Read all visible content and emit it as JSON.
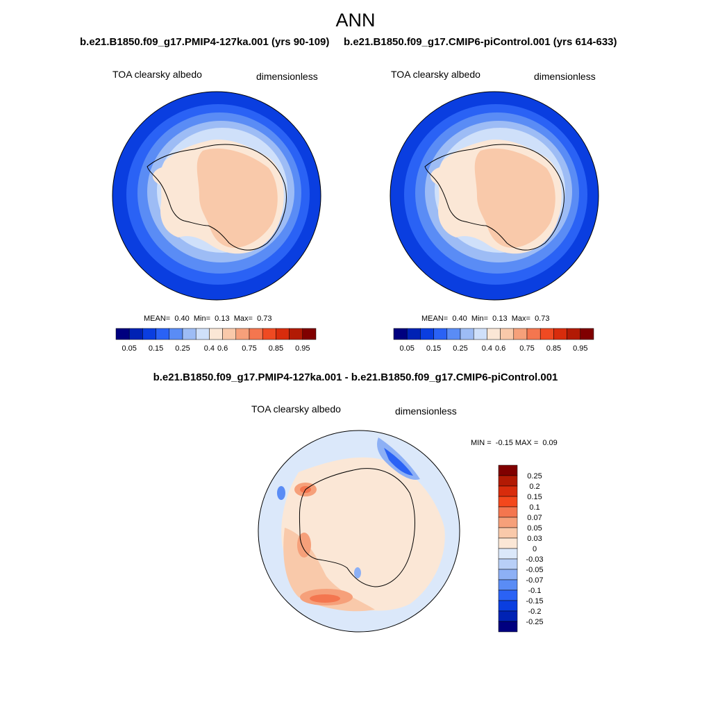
{
  "figure": {
    "title": "ANN",
    "panel_a": {
      "case": "b.e21.B1850.f09_g17.PMIP4-127ka.001 (yrs 90-109)",
      "variable": "TOA clearsky albedo",
      "units": "dimensionless",
      "stats": {
        "mean_label": "MEAN=",
        "mean": "0.40",
        "min_label": "Min=",
        "min": "0.13",
        "max_label": "Max=",
        "max": "0.73"
      }
    },
    "panel_b": {
      "case": "b.e21.B1850.f09_g17.CMIP6-piControl.001 (yrs 614-633)",
      "variable": "TOA clearsky albedo",
      "units": "dimensionless",
      "stats": {
        "mean_label": "MEAN=",
        "mean": "0.40",
        "min_label": "Min=",
        "min": "0.13",
        "max_label": "Max=",
        "max": "0.73"
      }
    },
    "panel_c": {
      "title": "b.e21.B1850.f09_g17.PMIP4-127ka.001 - b.e21.B1850.f09_g17.CMIP6-piControl.001",
      "variable": "TOA clearsky albedo",
      "units": "dimensionless",
      "stats": {
        "min_label": "MIN =",
        "min": "-0.15",
        "max_label": "MAX =",
        "max": "0.09"
      }
    },
    "colorbar_abs": {
      "ticks": [
        "0.05",
        "0.15",
        "0.25",
        "0.4",
        "0.6",
        "0.75",
        "0.85",
        "0.95"
      ],
      "colors": [
        "#00007f",
        "#0022b4",
        "#0a3ee0",
        "#2a62f5",
        "#5a8cf5",
        "#9dbcf5",
        "#cfe0fa",
        "#fbe7d6",
        "#f9c9aa",
        "#f6a07a",
        "#f4764f",
        "#ef4a22",
        "#d82c0c",
        "#b21a04",
        "#800000"
      ]
    },
    "colorbar_diff": {
      "labels": [
        "0.25",
        "0.2",
        "0.15",
        "0.1",
        "0.07",
        "0.05",
        "0.03",
        "0",
        "-0.03",
        "-0.05",
        "-0.07",
        "-0.1",
        "-0.15",
        "-0.2",
        "-0.25"
      ],
      "colors": [
        "#800000",
        "#b21a04",
        "#d82c0c",
        "#f4481c",
        "#f4764f",
        "#f6a07a",
        "#f9c9aa",
        "#fbe7d6",
        "#dbe8fa",
        "#b8cff7",
        "#8db0f5",
        "#5a8cf5",
        "#2a62f5",
        "#0a3ee0",
        "#0022b4",
        "#00007f"
      ]
    },
    "chart_data": {
      "type": "heatmap",
      "projection": "South Polar Stereographic",
      "season": "ANN",
      "panels": [
        {
          "name": "PMIP4-127ka",
          "variable": "TOA clearsky albedo",
          "mean": 0.4,
          "min": 0.13,
          "max": 0.73,
          "levels": [
            0.05,
            0.1,
            0.15,
            0.2,
            0.25,
            0.3,
            0.4,
            0.5,
            0.6,
            0.7,
            0.75,
            0.8,
            0.85,
            0.9,
            0.95
          ]
        },
        {
          "name": "CMIP6-piControl",
          "variable": "TOA clearsky albedo",
          "mean": 0.4,
          "min": 0.13,
          "max": 0.73,
          "levels": [
            0.05,
            0.1,
            0.15,
            0.2,
            0.25,
            0.3,
            0.4,
            0.5,
            0.6,
            0.7,
            0.75,
            0.8,
            0.85,
            0.9,
            0.95
          ]
        },
        {
          "name": "difference",
          "variable": "TOA clearsky albedo",
          "min": -0.15,
          "max": 0.09,
          "levels": [
            -0.25,
            -0.2,
            -0.15,
            -0.1,
            -0.07,
            -0.05,
            -0.03,
            0,
            0.03,
            0.05,
            0.07,
            0.1,
            0.15,
            0.2,
            0.25
          ]
        }
      ]
    }
  }
}
